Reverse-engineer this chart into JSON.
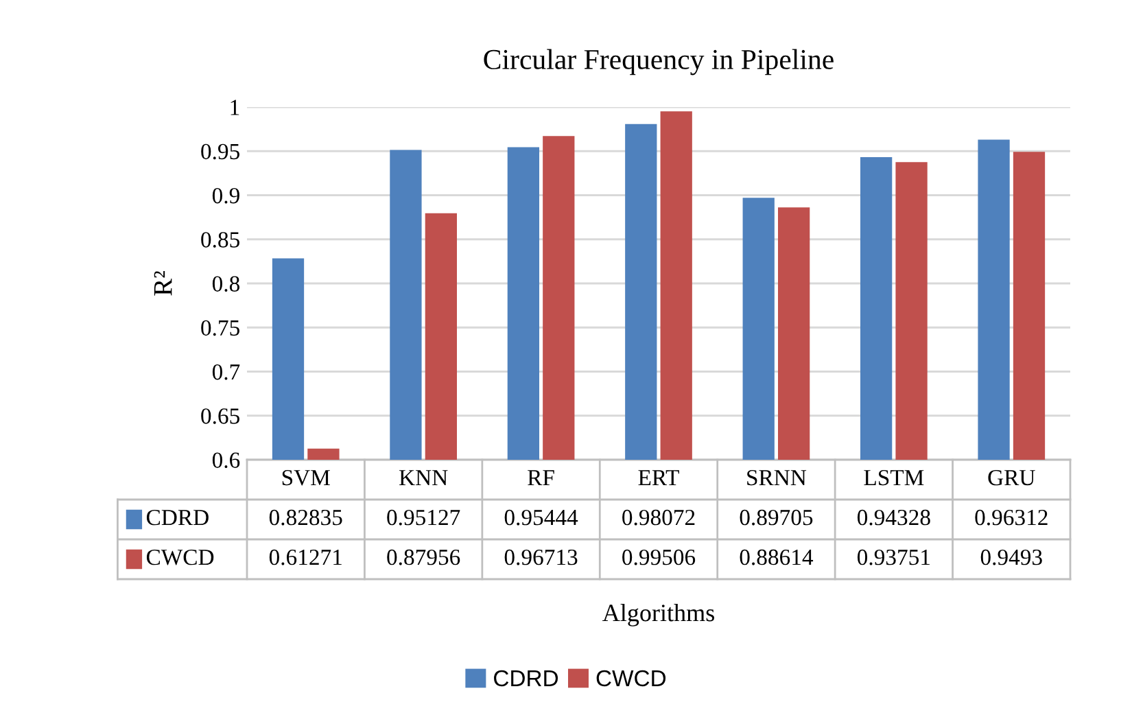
{
  "chart_data": {
    "type": "bar",
    "title": "Circular Frequency in Pipeline",
    "xlabel": "Algorithms",
    "ylabel": "R²",
    "categories": [
      "SVM",
      "KNN",
      "RF",
      "ERT",
      "SRNN",
      "LSTM",
      "GRU"
    ],
    "series": [
      {
        "name": "CDRD",
        "color": "#4f81bd",
        "values": [
          0.82835,
          0.95127,
          0.95444,
          0.98072,
          0.89705,
          0.94328,
          0.96312
        ]
      },
      {
        "name": "CWCD",
        "color": "#c0504d",
        "values": [
          0.61271,
          0.87956,
          0.96713,
          0.99506,
          0.88614,
          0.93751,
          0.9493
        ]
      }
    ],
    "ylim": [
      0.6,
      1
    ],
    "yticks": [
      0.6,
      0.65,
      0.7,
      0.75,
      0.8,
      0.85,
      0.9,
      0.95,
      1
    ],
    "grid": "y",
    "legend": "bottom",
    "data_labels": true
  }
}
